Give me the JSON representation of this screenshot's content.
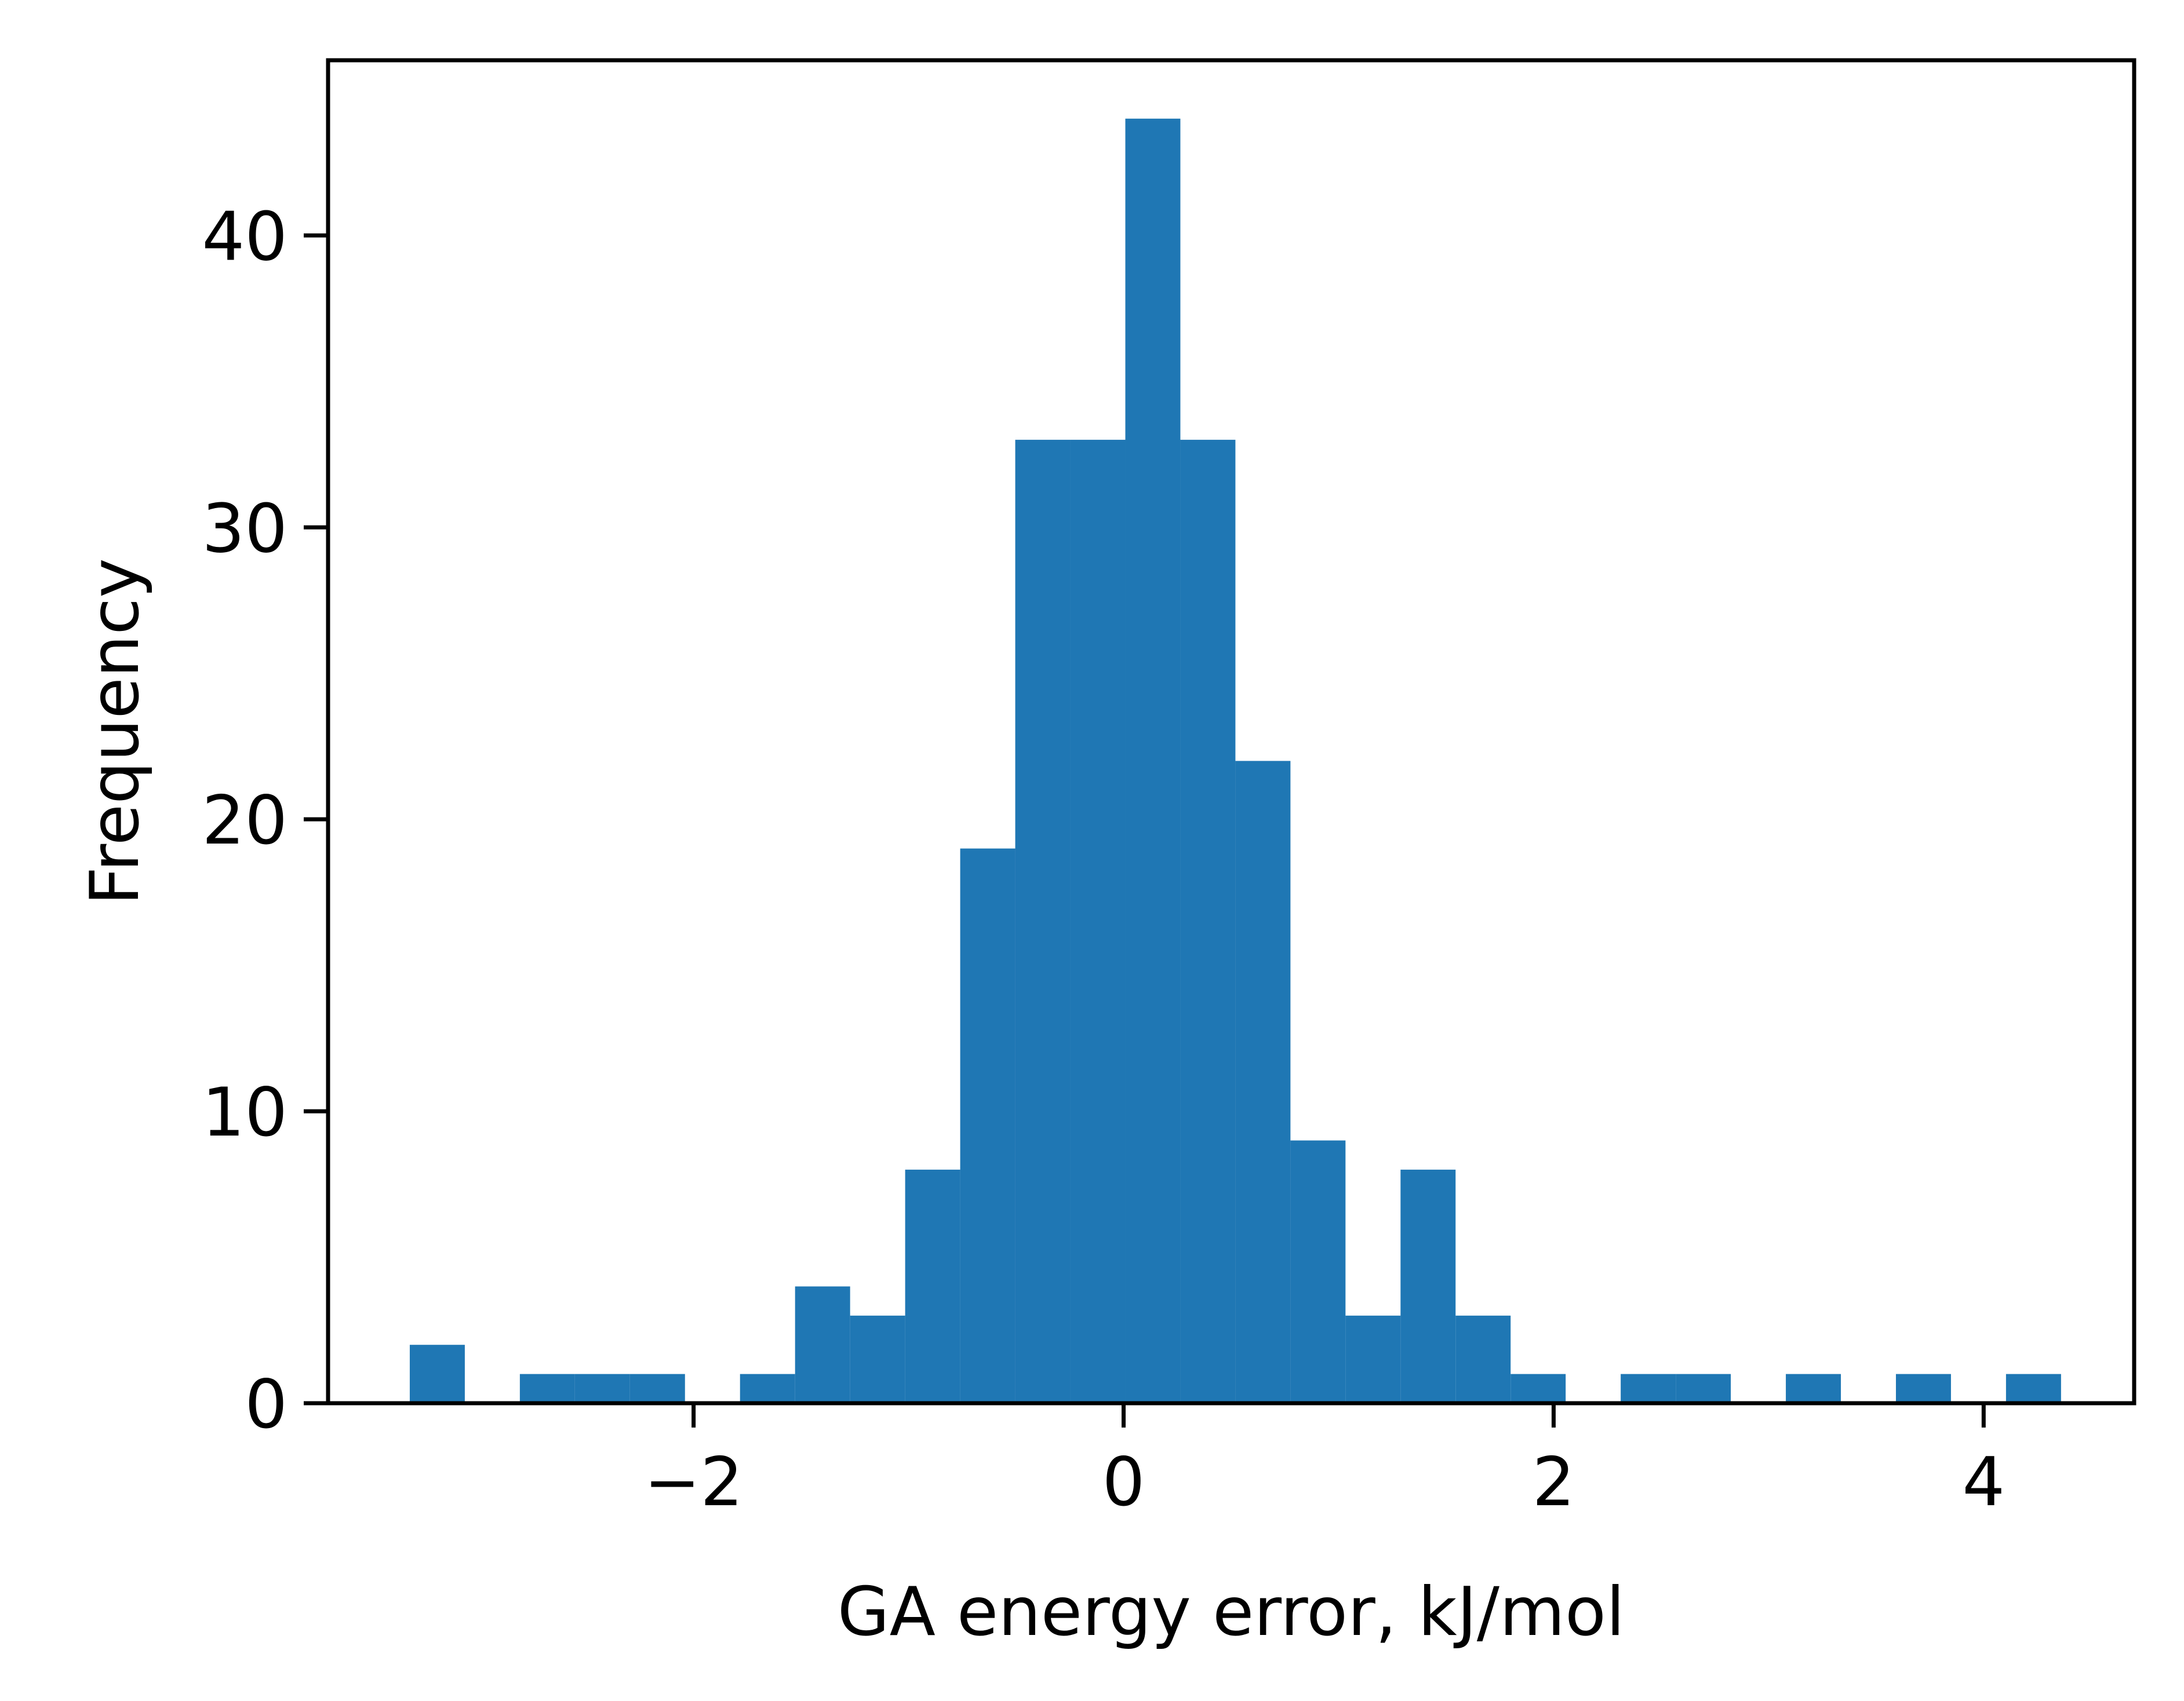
{
  "chart_data": {
    "type": "bar",
    "xlabel": "GA energy error, kJ/mol",
    "ylabel": "Frequency",
    "xlim": [
      -3.7,
      4.7
    ],
    "ylim": [
      0,
      46
    ],
    "bin_width": 0.256,
    "bins": [
      {
        "x0": -3.32,
        "value": 2
      },
      {
        "x0": -2.808,
        "value": 1
      },
      {
        "x0": -2.552,
        "value": 1
      },
      {
        "x0": -2.296,
        "value": 1
      },
      {
        "x0": -1.784,
        "value": 1
      },
      {
        "x0": -1.528,
        "value": 4
      },
      {
        "x0": -1.272,
        "value": 3
      },
      {
        "x0": -1.016,
        "value": 8
      },
      {
        "x0": -0.76,
        "value": 19
      },
      {
        "x0": -0.504,
        "value": 33
      },
      {
        "x0": -0.248,
        "value": 33
      },
      {
        "x0": 0.008,
        "value": 44
      },
      {
        "x0": 0.264,
        "value": 33
      },
      {
        "x0": 0.52,
        "value": 22
      },
      {
        "x0": 0.776,
        "value": 9
      },
      {
        "x0": 1.032,
        "value": 3
      },
      {
        "x0": 1.288,
        "value": 8
      },
      {
        "x0": 1.544,
        "value": 3
      },
      {
        "x0": 1.8,
        "value": 1
      },
      {
        "x0": 2.312,
        "value": 1
      },
      {
        "x0": 2.568,
        "value": 1
      },
      {
        "x0": 3.08,
        "value": 1
      },
      {
        "x0": 3.592,
        "value": 1
      },
      {
        "x0": 4.104,
        "value": 1
      }
    ],
    "xticks": [
      {
        "value": -2,
        "label": "−2"
      },
      {
        "value": 0,
        "label": "0"
      },
      {
        "value": 2,
        "label": "2"
      },
      {
        "value": 4,
        "label": "4"
      }
    ],
    "yticks": [
      {
        "value": 0,
        "label": "0"
      },
      {
        "value": 10,
        "label": "10"
      },
      {
        "value": 20,
        "label": "20"
      },
      {
        "value": 30,
        "label": "30"
      },
      {
        "value": 40,
        "label": "40"
      }
    ],
    "bar_color": "#1f77b4",
    "grid": false,
    "legend": "none"
  }
}
